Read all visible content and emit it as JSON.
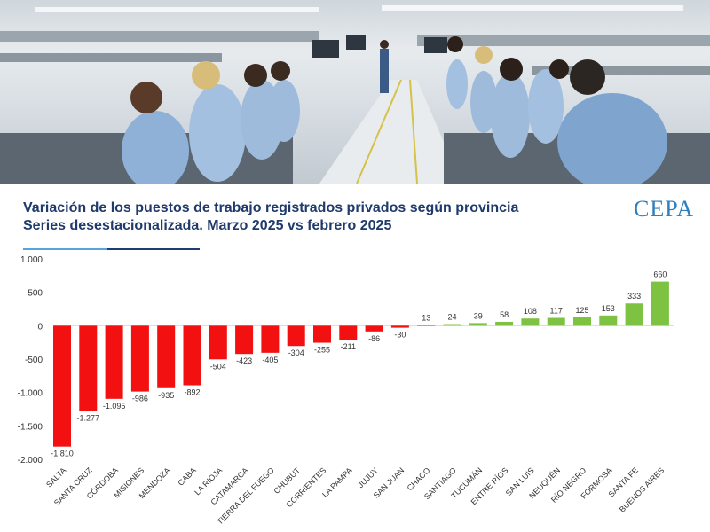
{
  "chart_data": {
    "type": "bar",
    "title": "Variación de los puestos de trabajo registrados privados según provincia",
    "subtitle": "Series desestacionalizada. Marzo 2025 vs febrero 2025",
    "categories": [
      "SALTA",
      "SANTA CRUZ",
      "CÓRDOBA",
      "MISIONES",
      "MENDOZA",
      "CABA",
      "LA RIOJA",
      "CATAMARCA",
      "TIERRA DEL FUEGO",
      "CHUBUT",
      "CORRIENTES",
      "LA PAMPA",
      "JUJUY",
      "SAN JUAN",
      "CHACO",
      "SANTIAGO",
      "TUCUMÁN",
      "ENTRE RÍOS",
      "SAN LUIS",
      "NEUQUÉN",
      "RÍO NEGRO",
      "FORMOSA",
      "SANTA FE",
      "BUENOS AIRES"
    ],
    "values": [
      -1810,
      -1277,
      -1095,
      -986,
      -935,
      -892,
      -504,
      -423,
      -405,
      -304,
      -255,
      -211,
      -86,
      -30,
      13,
      24,
      39,
      58,
      108,
      117,
      125,
      153,
      333,
      660
    ],
    "value_labels": [
      "-1.810",
      "-1.277",
      "-1.095",
      "-986",
      "-935",
      "-892",
      "-504",
      "-423",
      "-405",
      "-304",
      "-255",
      "-211",
      "-86",
      "-30",
      "13",
      "24",
      "39",
      "58",
      "108",
      "117",
      "125",
      "153",
      "333",
      "660"
    ],
    "yticks": [
      1000,
      500,
      0,
      -500,
      -1000,
      -1500,
      -2000
    ],
    "ytick_labels": [
      "1.000",
      "500",
      "0",
      "-500",
      "-1.000",
      "-1.500",
      "-2.000"
    ],
    "ylim": [
      -2000,
      1000
    ],
    "grid": false,
    "xlabel": "",
    "ylabel": "",
    "colors": {
      "negative": "#f21010",
      "positive": "#7ec242"
    }
  },
  "logo_text": "CEPA"
}
